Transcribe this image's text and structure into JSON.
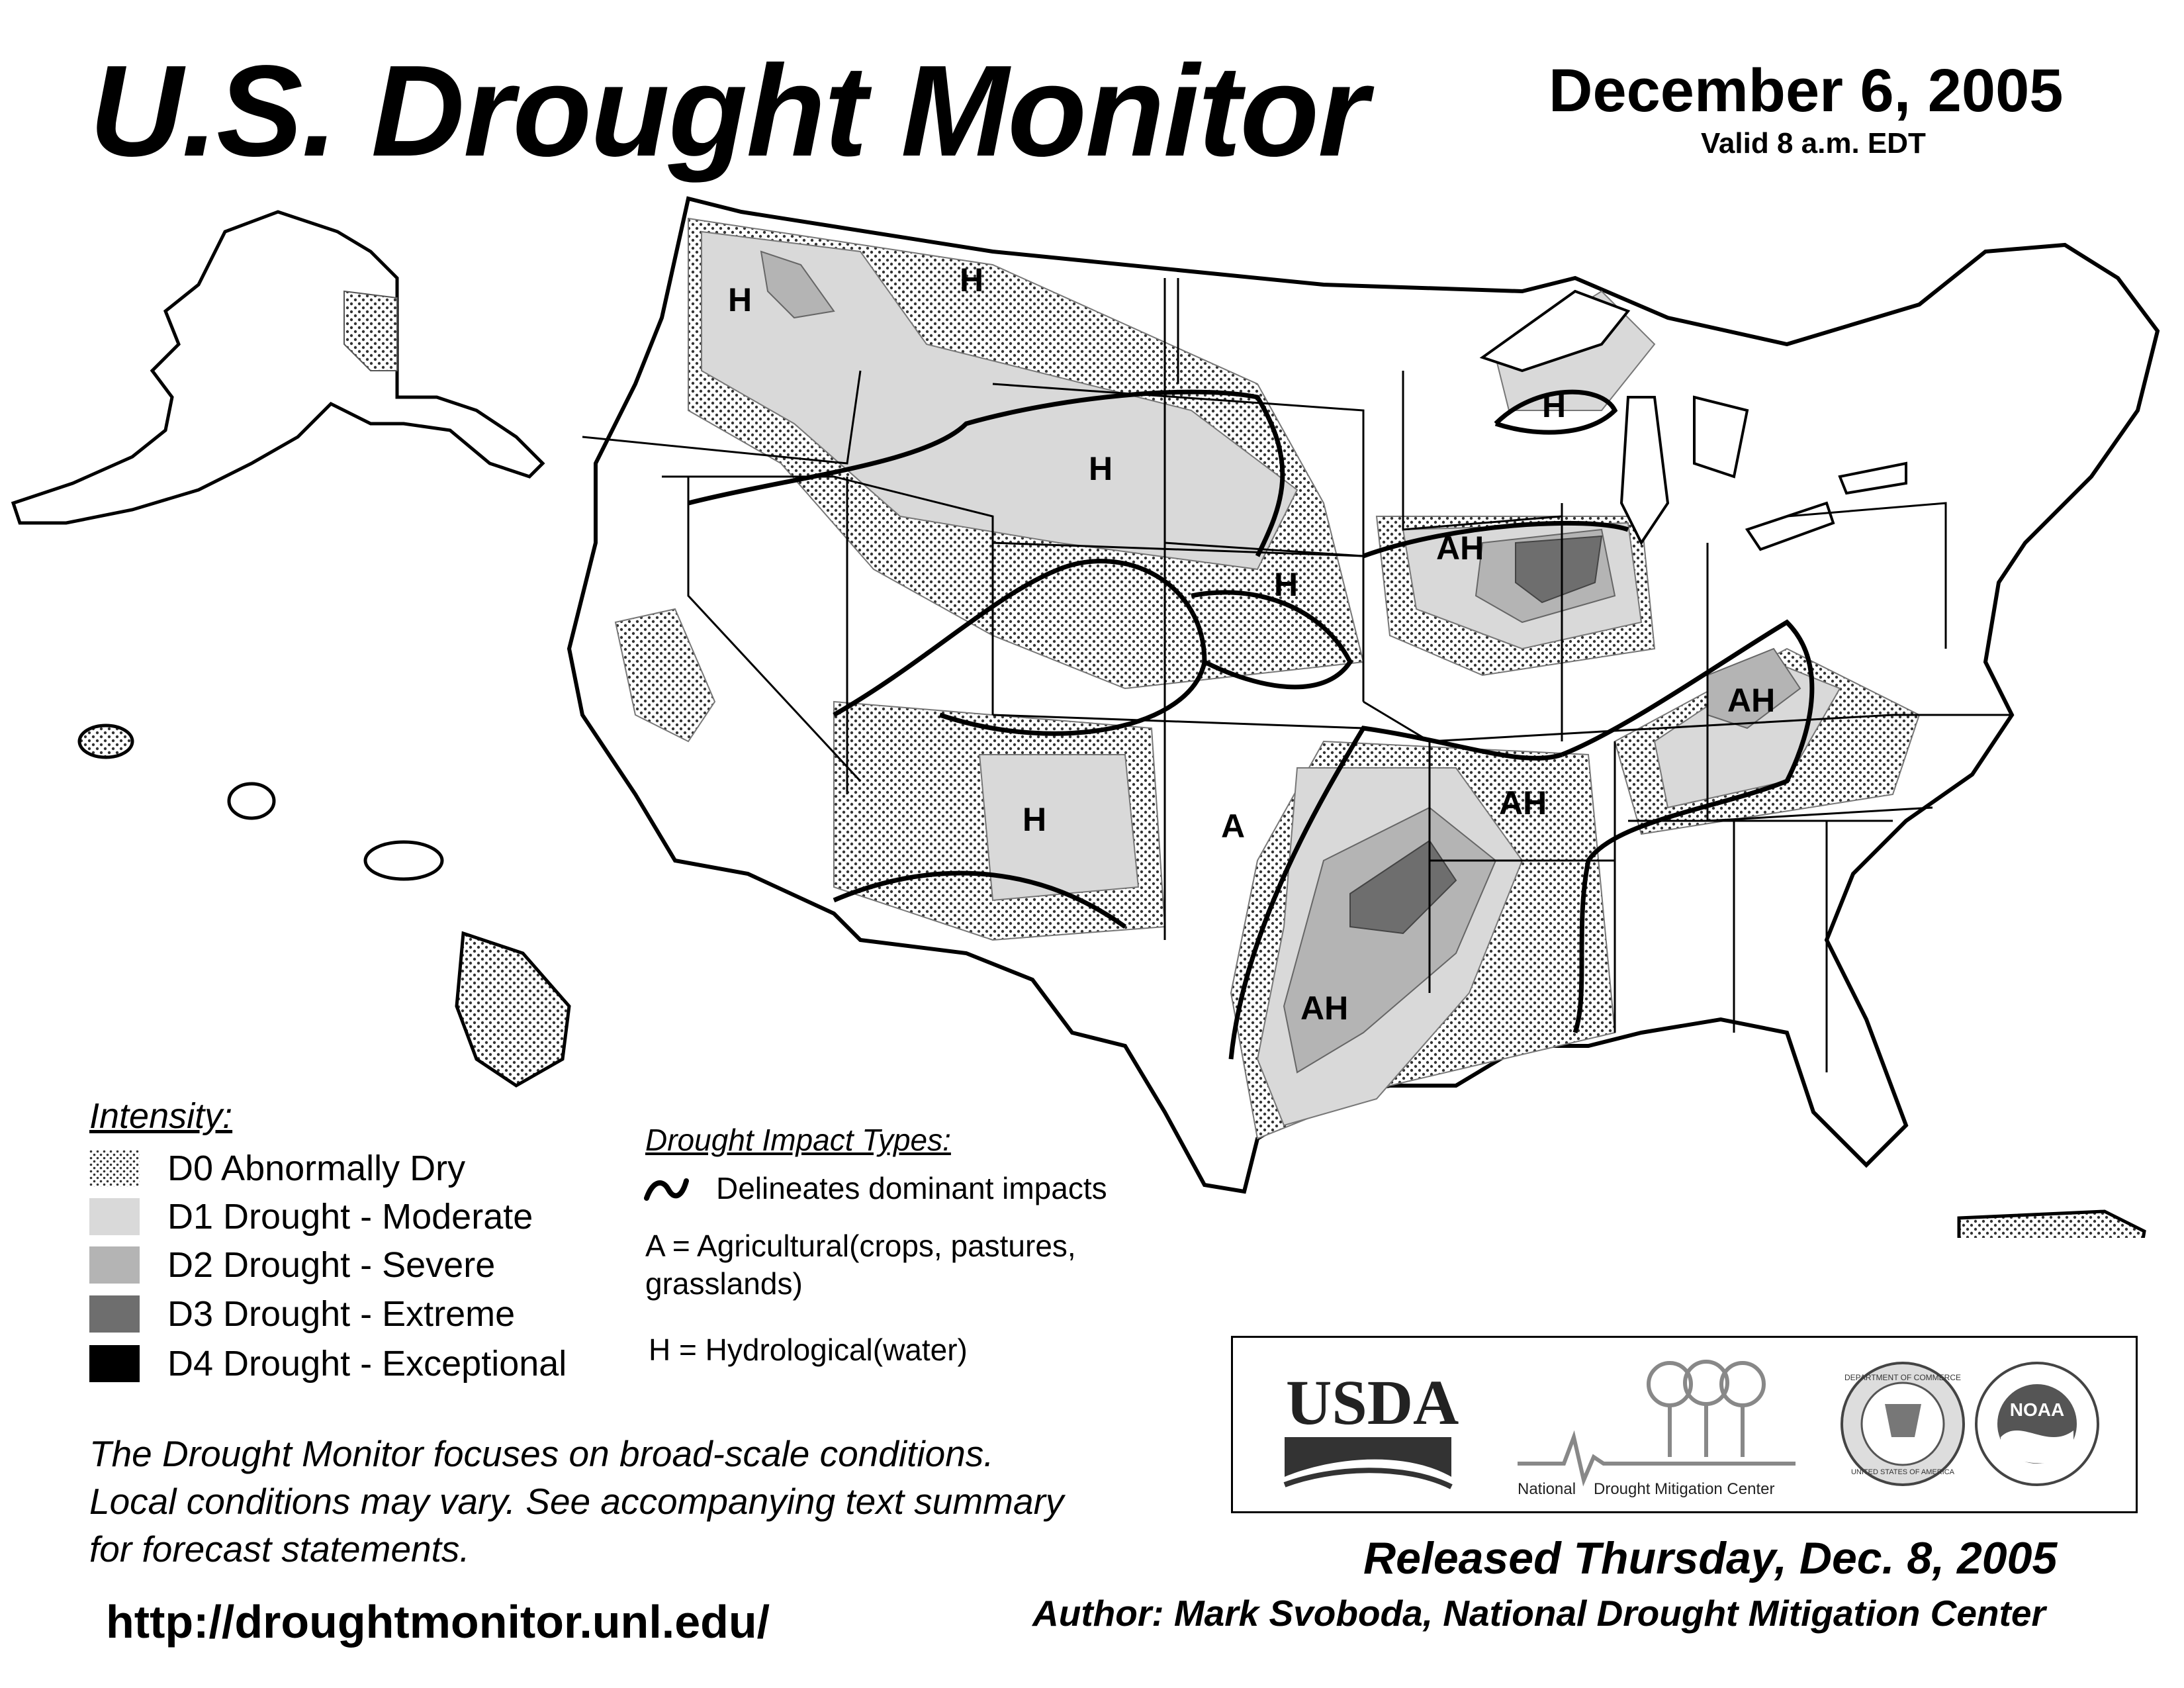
{
  "header": {
    "title": "U.S. Drought Monitor",
    "date": "December 6, 2005",
    "valid": "Valid 8 a.m. EDT"
  },
  "legend": {
    "title": "Intensity:",
    "items": [
      {
        "label": "D0 Abnormally Dry",
        "color": "#f0f0f0",
        "pattern": "dotted"
      },
      {
        "label": "D1 Drought - Moderate",
        "color": "#d9d9d9"
      },
      {
        "label": "D2 Drought - Severe",
        "color": "#b4b4b4"
      },
      {
        "label": "D3 Drought - Extreme",
        "color": "#6e6e6e"
      },
      {
        "label": "D4 Drought - Exceptional",
        "color": "#000000"
      }
    ]
  },
  "impact_types": {
    "title": "Drought Impact Types:",
    "delineates": "Delineates dominant impacts",
    "agricultural_line1": "A = Agricultural(crops, pastures,",
    "agricultural_line2": "grasslands)",
    "hydrological": "H = Hydrological(water)"
  },
  "map": {
    "region_labels": [
      "H",
      "H",
      "H",
      "H",
      "H",
      "AH",
      "AH",
      "A",
      "H",
      "AH",
      "AH"
    ]
  },
  "note": {
    "line1": "The Drought Monitor focuses on broad-scale conditions.",
    "line2": "Local conditions may vary. See accompanying text summary",
    "line3": "for forecast statements."
  },
  "url": "http://droughtmonitor.unl.edu/",
  "logos": {
    "usda": "USDA",
    "ndmc_left": "National",
    "ndmc_right": "Drought Mitigation Center",
    "noaa": "NOAA",
    "commerce_ring": "DEPARTMENT OF COMMERCE",
    "commerce_bottom": "UNITED STATES OF AMERICA"
  },
  "footer": {
    "released": "Released Thursday, Dec. 8, 2005",
    "author": "Author: Mark Svoboda, National Drought Mitigation Center"
  }
}
